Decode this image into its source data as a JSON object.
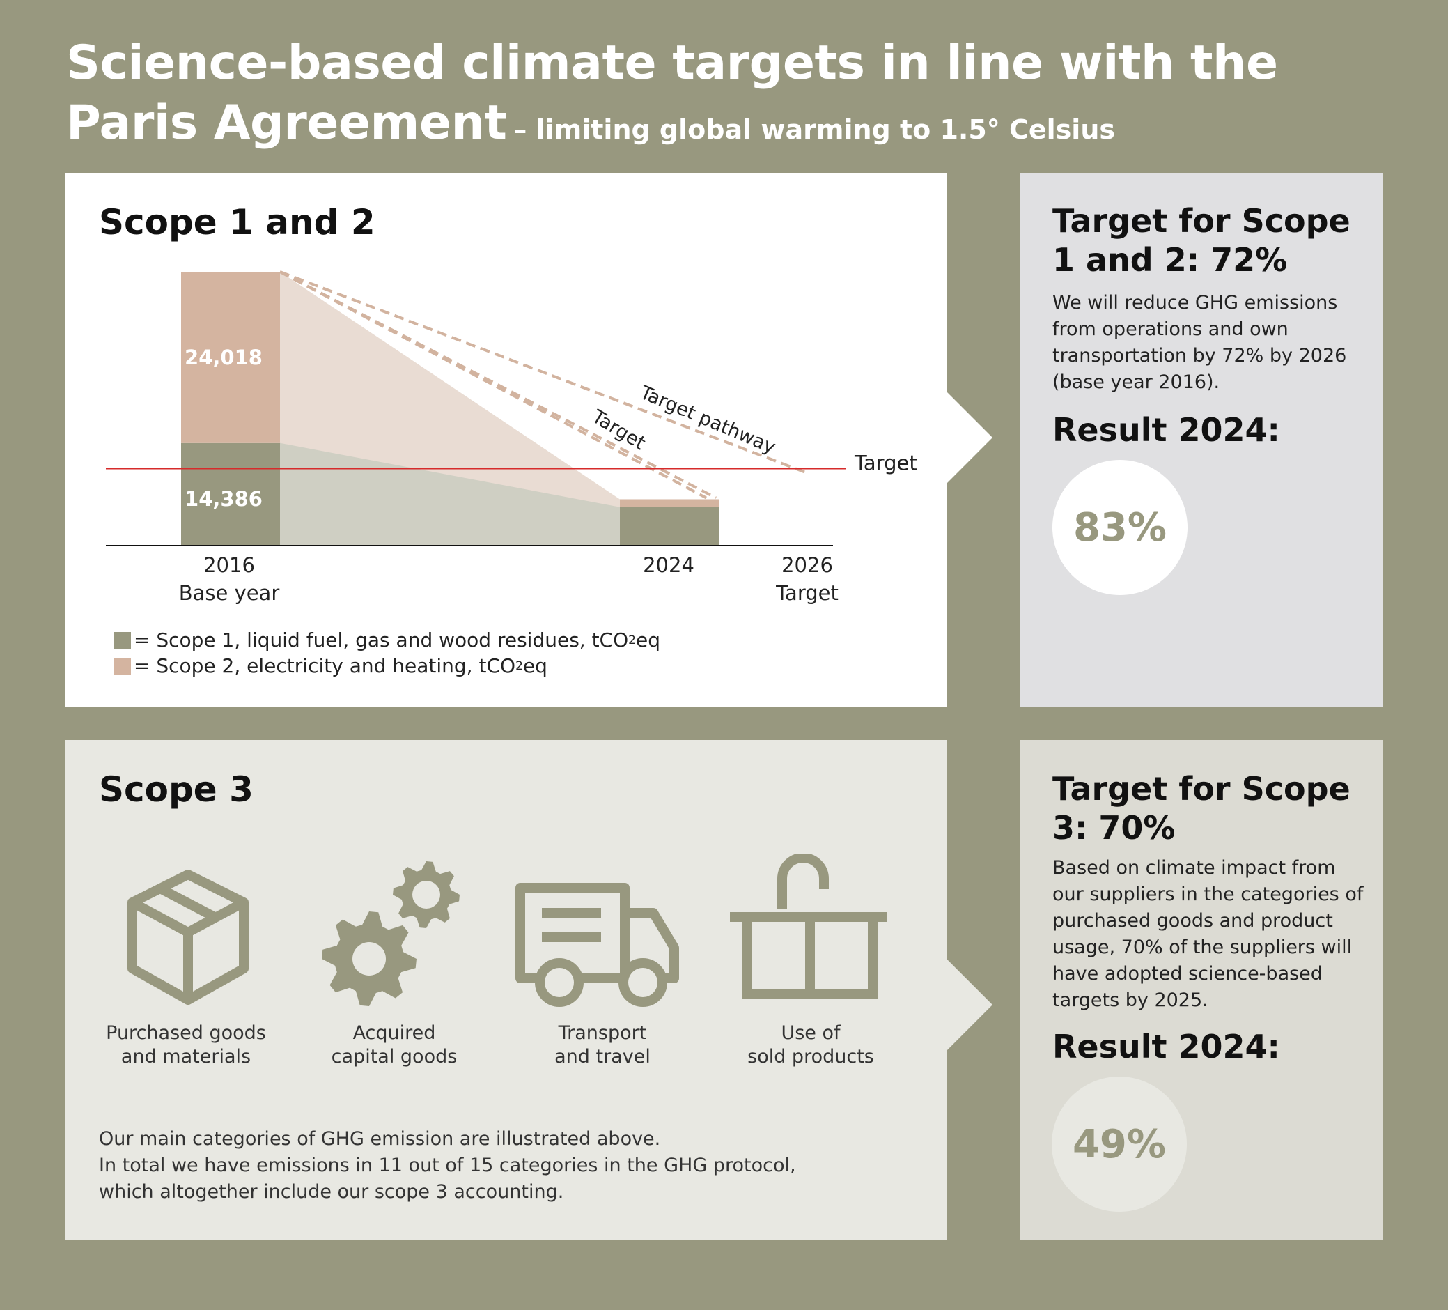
{
  "header": {
    "title_line1": "Science-based climate targets in line with the",
    "title_line2": "Paris Agreement",
    "subtitle": "– limiting global warming to 1.5° Celsius"
  },
  "scope12": {
    "heading": "Scope 1 and 2",
    "target_line_label": "Target",
    "target_pathway_label": "Target pathway",
    "target_dash_label": "Target",
    "legend": [
      {
        "label": "= Scope 1, liquid fuel, gas and wood residues, tCO",
        "sub": "2",
        "suffix": "eq",
        "color": "#98987f"
      },
      {
        "label": "= Scope 2, electricity and heating, tCO",
        "sub": "2",
        "suffix": "eq",
        "color": "#d4b4a0"
      }
    ]
  },
  "chart_data": {
    "type": "bar",
    "categories": [
      "2016",
      "2024",
      "2026"
    ],
    "category_sublabels": [
      "Base year",
      "",
      "Target"
    ],
    "series": [
      {
        "name": "Scope 1, liquid fuel, gas and wood residues, tCO2eq",
        "values": [
          14386,
          5400,
          null
        ],
        "color": "#98987f",
        "data_labels": [
          "14,386",
          "",
          ""
        ]
      },
      {
        "name": "Scope 2, electricity and heating, tCO2eq",
        "values": [
          24018,
          1100,
          null
        ],
        "color": "#d4b4a0",
        "data_labels": [
          "24,018",
          "",
          ""
        ]
      }
    ],
    "target_value": 10800,
    "ylim": [
      0,
      38404
    ],
    "stacked": true,
    "xlabel": "",
    "ylabel": "",
    "legend": "bottom-left"
  },
  "side1": {
    "heading": "Target for Scope 1 and 2: 72%",
    "text": "We will reduce GHG emissions from operations and own transportation by 72% by 2026 (base year 2016).",
    "result_heading": "Result 2024:",
    "result_value": "83%"
  },
  "scope3": {
    "heading": "Scope 3",
    "categories": [
      {
        "line1": "Purchased goods",
        "line2": "and materials",
        "icon": "box-icon"
      },
      {
        "line1": "Acquired",
        "line2": "capital goods",
        "icon": "gears-icon"
      },
      {
        "line1": "Transport",
        "line2": "and travel",
        "icon": "truck-icon"
      },
      {
        "line1": "Use of",
        "line2": "sold products",
        "icon": "sink-faucet-icon"
      }
    ],
    "note_lines": [
      "Our main categories of GHG emission are illustrated above.",
      "In total we have emissions in 11 out of 15 categories in the GHG protocol,",
      "which altogether include our scope 3 accounting."
    ]
  },
  "side2": {
    "heading": "Target for Scope 3: 70%",
    "text": "Based on climate impact from our suppliers in the categories of purchased goods and product usage, 70% of the suppliers will have adopted science-based targets by 2025.",
    "result_heading": "Result 2024:",
    "result_value": "49%"
  },
  "colors": {
    "background": "#98987f",
    "scope1": "#98987f",
    "scope2": "#d4b4a0",
    "target_line": "#d62b2b"
  }
}
